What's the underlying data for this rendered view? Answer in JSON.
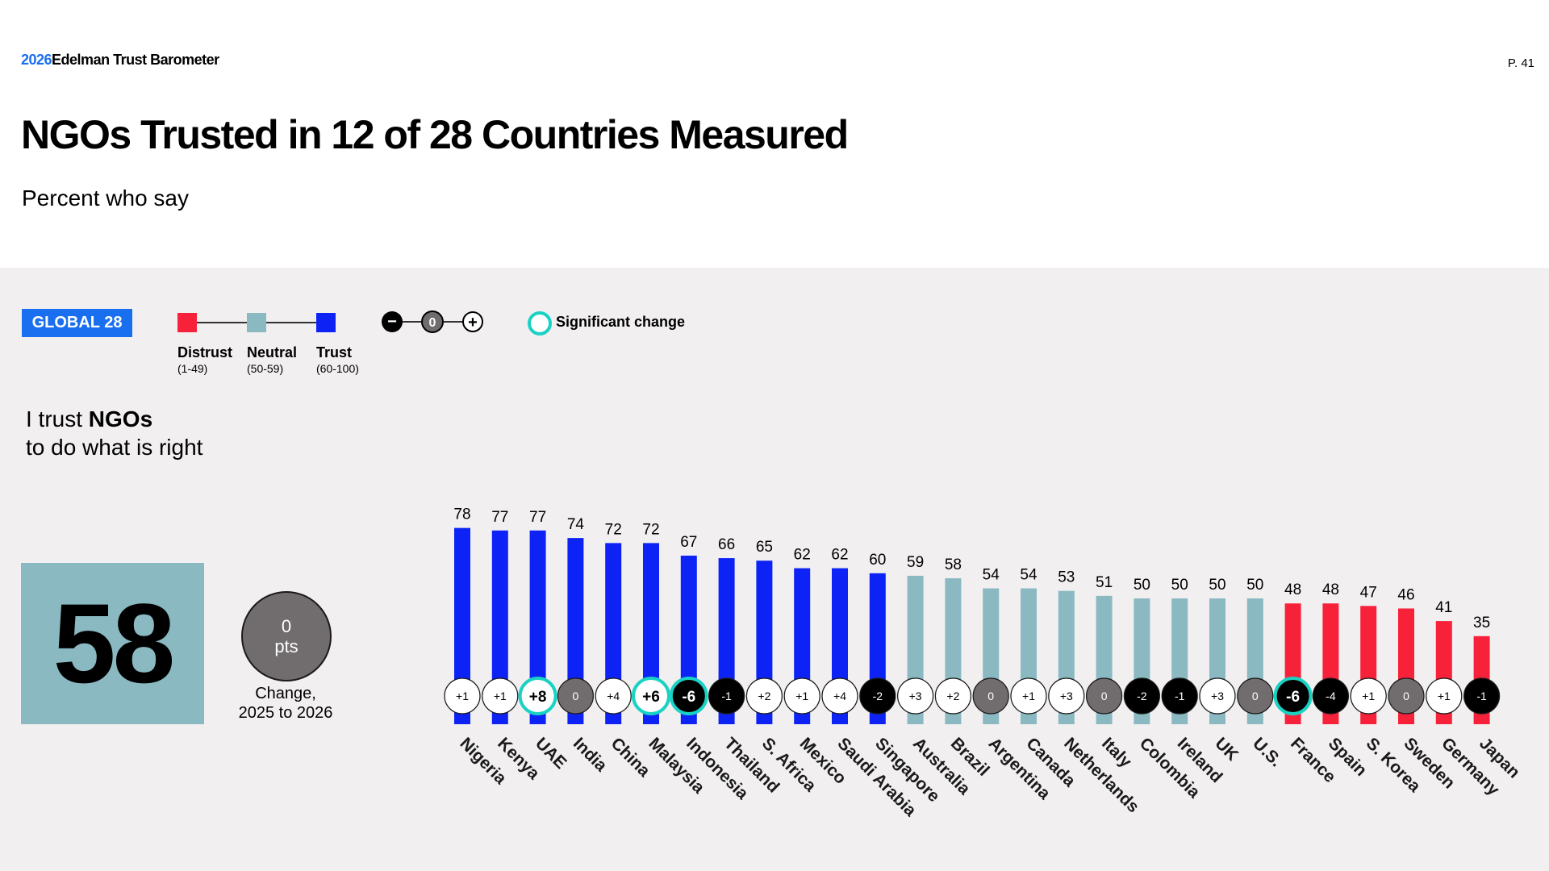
{
  "header": {
    "brand_year": "2026",
    "brand_name": "Edelman Trust Barometer",
    "page_number": "P. 41",
    "title": "NGOs Trusted in 12 of 28 Countries Measured",
    "subtitle": "Percent who say"
  },
  "legend": {
    "global_label": "GLOBAL 28",
    "items": [
      {
        "label": "Distrust",
        "range": "(1-49)",
        "color": "#f8213a"
      },
      {
        "label": "Neutral",
        "range": "(50-59)",
        "color": "#8ab9c2"
      },
      {
        "label": "Trust",
        "range": "(60-100)",
        "color": "#0d23f5"
      }
    ],
    "change_symbols": {
      "minus": "−",
      "zero": "0",
      "plus": "+"
    },
    "significant_label": "Significant change",
    "significant_color": "#19d2c3"
  },
  "question": {
    "prefix": "I trust ",
    "subject": "NGOs",
    "suffix": "to do what is right"
  },
  "global": {
    "value": "58",
    "change_value": "0",
    "change_unit": "pts",
    "change_caption_line1": "Change,",
    "change_caption_line2": "2025 to 2026"
  },
  "chart_data": {
    "type": "bar",
    "title": "NGOs Trusted in 12 of 28 Countries Measured",
    "ylabel": "Percent who say",
    "ylim": [
      0,
      100
    ],
    "grid": false,
    "categories": [
      "Nigeria",
      "Kenya",
      "UAE",
      "India",
      "China",
      "Malaysia",
      "Indonesia",
      "Thailand",
      "S. Africa",
      "Mexico",
      "Saudi Arabia",
      "Singapore",
      "Australia",
      "Brazil",
      "Argentina",
      "Canada",
      "Netherlands",
      "Italy",
      "Colombia",
      "Ireland",
      "UK",
      "U.S.",
      "France",
      "Spain",
      "S. Korea",
      "Sweden",
      "Germany",
      "Japan"
    ],
    "values": [
      78,
      77,
      77,
      74,
      72,
      72,
      67,
      66,
      65,
      62,
      62,
      60,
      59,
      58,
      54,
      54,
      53,
      51,
      50,
      50,
      50,
      50,
      48,
      48,
      47,
      46,
      41,
      35
    ],
    "changes": [
      "+1",
      "+1",
      "+8",
      "0",
      "+4",
      "+6",
      "-6",
      "-1",
      "+2",
      "+1",
      "+4",
      "-2",
      "+3",
      "+2",
      "0",
      "+1",
      "+3",
      "0",
      "-2",
      "-1",
      "+3",
      "0",
      "-6",
      "-4",
      "+1",
      "0",
      "+1",
      "-1"
    ],
    "significant": [
      false,
      false,
      true,
      false,
      false,
      true,
      true,
      false,
      false,
      false,
      false,
      false,
      false,
      false,
      false,
      false,
      false,
      false,
      false,
      false,
      false,
      false,
      true,
      false,
      false,
      false,
      false,
      false
    ],
    "colors": {
      "distrust": "#f8213a",
      "neutral": "#8ab9c2",
      "trust": "#0d23f5"
    }
  }
}
